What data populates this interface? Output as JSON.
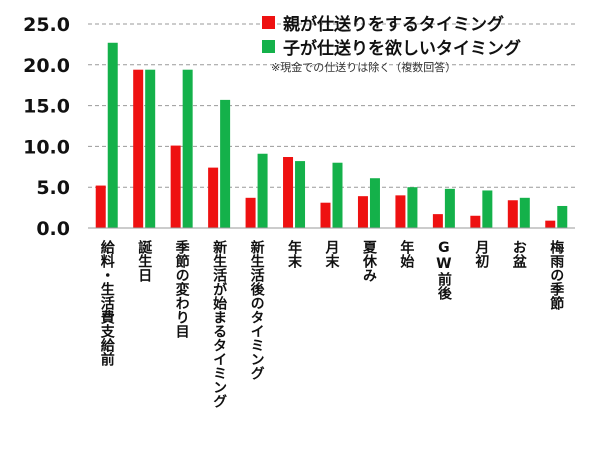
{
  "chart_data": {
    "type": "bar",
    "categories": [
      "給料・生活費支給前",
      "誕生日",
      "季節の変わり目",
      "新生活が始まるタイミング",
      "新生活後のタイミング",
      "年末",
      "月末",
      "夏休み",
      "年始",
      "GW前後",
      "月初",
      "お盆",
      "梅雨の季節"
    ],
    "series": [
      {
        "name": "親が仕送りをするタイミング",
        "color": "#ee1111",
        "values": [
          5.2,
          19.4,
          10.1,
          7.4,
          3.7,
          8.7,
          3.1,
          3.9,
          4.0,
          1.7,
          1.5,
          3.4,
          0.9
        ]
      },
      {
        "name": "子が仕送りを欲しいタイミング",
        "color": "#14b14a",
        "values": [
          22.7,
          19.4,
          19.4,
          15.7,
          9.1,
          8.2,
          8.0,
          6.1,
          5.0,
          4.8,
          4.6,
          3.7,
          2.7
        ]
      }
    ],
    "yticks": [
      "0.0",
      "5.0",
      "10.0",
      "15.0",
      "20.0",
      "25.0"
    ],
    "ylim": [
      0,
      25
    ],
    "grid": true,
    "legend_position": "top-right",
    "note": "※現金での仕送りは除く（複数回答）"
  }
}
